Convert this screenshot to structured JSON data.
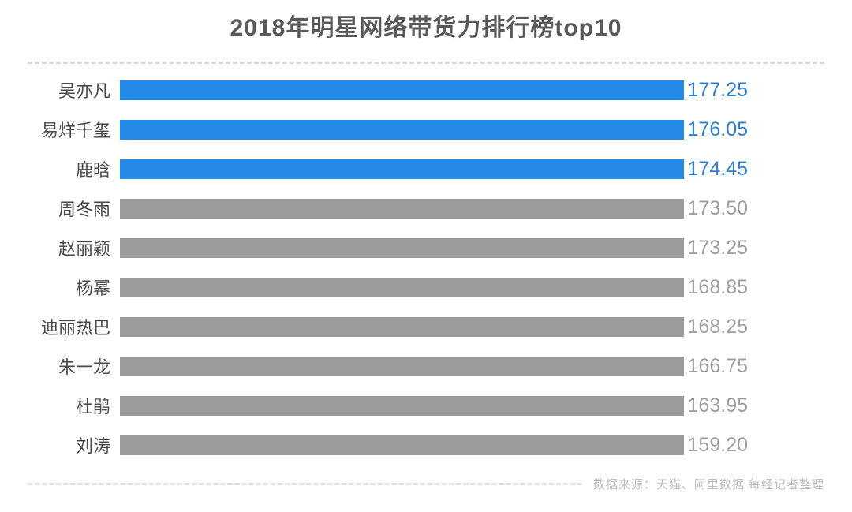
{
  "title": "2018年明星网络带货力排行榜top10",
  "footer": {
    "source_note": "数据来源：天猫、阿里数据 每经记者整理"
  },
  "chart_data": {
    "type": "bar",
    "orientation": "horizontal",
    "title": "2018年明星网络带货力排行榜top10",
    "categories": [
      "吴亦凡",
      "易烊千玺",
      "鹿晗",
      "周冬雨",
      "赵丽颖",
      "杨幂",
      "迪丽热巴",
      "朱一龙",
      "杜鹃",
      "刘涛"
    ],
    "values": [
      177.25,
      176.05,
      174.45,
      173.5,
      173.25,
      168.85,
      168.25,
      166.75,
      163.95,
      159.2
    ],
    "value_labels": [
      "177.25",
      "176.05",
      "174.45",
      "173.50",
      "173.25",
      "168.85",
      "168.25",
      "166.75",
      "163.95",
      "159.20"
    ],
    "highlight_count": 3,
    "xlim": [
      0,
      177.25
    ],
    "xlabel": "",
    "ylabel": "",
    "grid": false,
    "legend": "none",
    "colors": {
      "highlight_bar": "#268be8",
      "highlight_value": "#2e7fd6",
      "bar": "#9b9b9b",
      "value": "#9e9e9e",
      "label": "#4a4a4a",
      "title": "#595959",
      "divider": "#d9d9d9"
    }
  }
}
